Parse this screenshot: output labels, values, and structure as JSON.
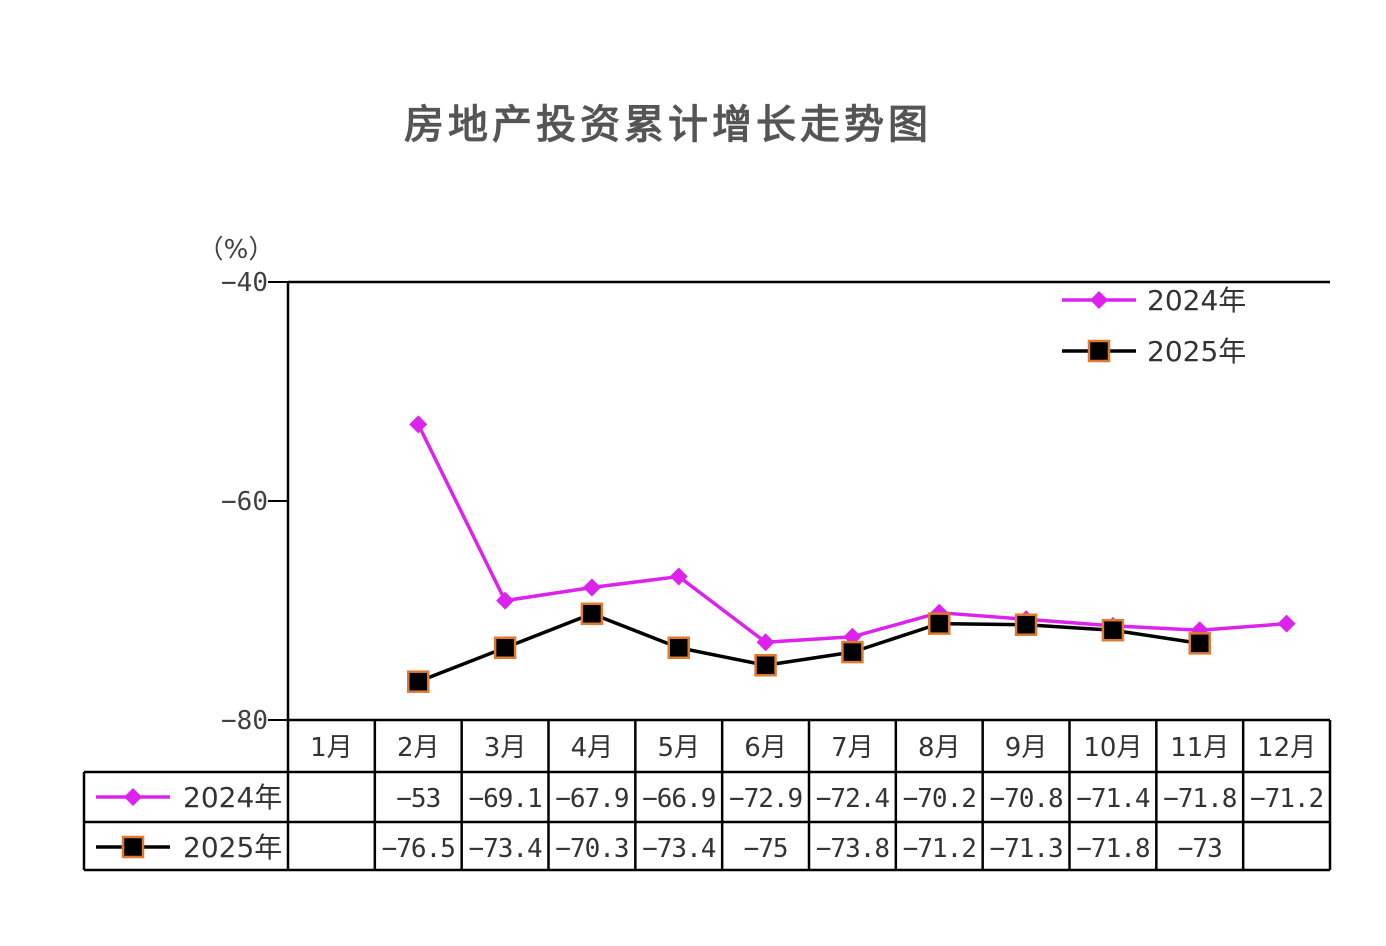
{
  "chart_data": {
    "type": "line",
    "title": "房地产投资累计增长走势图",
    "ylabel": "（%）",
    "ylim": [
      -80,
      -40
    ],
    "yticks": [
      -40,
      -60,
      -80
    ],
    "ytick_labels": [
      "−40",
      "−60",
      "−80"
    ],
    "categories": [
      "1月",
      "2月",
      "3月",
      "4月",
      "5月",
      "6月",
      "7月",
      "8月",
      "9月",
      "10月",
      "11月",
      "12月"
    ],
    "legend_position": "top-right",
    "grid": false,
    "series": [
      {
        "name": "2024年",
        "color": "#DD22EE",
        "marker": "diamond",
        "values": [
          null,
          -53,
          -69.1,
          -67.9,
          -66.9,
          -72.9,
          -72.4,
          -70.2,
          -70.8,
          -71.4,
          -71.8,
          -71.2
        ],
        "labels": [
          "",
          "−53",
          "−69.1",
          "−67.9",
          "−66.9",
          "−72.9",
          "−72.4",
          "−70.2",
          "−70.8",
          "−71.4",
          "−71.8",
          "−71.2"
        ]
      },
      {
        "name": "2025年",
        "color": "#000000",
        "marker": "square",
        "marker_edge_color": "#E07A30",
        "values": [
          null,
          -76.5,
          -73.4,
          -70.3,
          -73.4,
          -75,
          -73.8,
          -71.2,
          -71.3,
          -71.8,
          -73,
          null
        ],
        "labels": [
          "",
          "−76.5",
          "−73.4",
          "−70.3",
          "−73.4",
          "−75",
          "−73.8",
          "−71.2",
          "−71.3",
          "−71.8",
          "−73",
          ""
        ]
      }
    ]
  }
}
